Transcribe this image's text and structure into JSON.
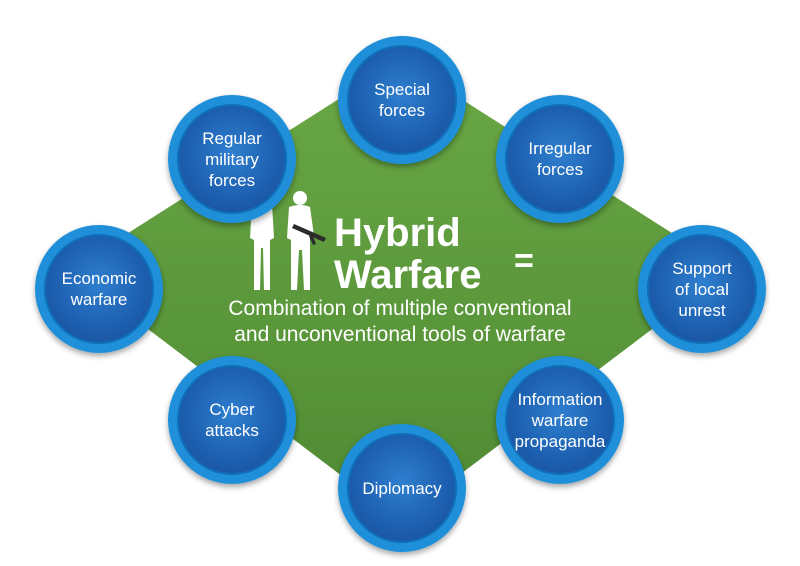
{
  "colors": {
    "background": "#ffffff",
    "diamond": "#5b9a3b",
    "circle_fill": "#1d5fb0",
    "circle_ring": "#1e8fd8",
    "text": "#ffffff"
  },
  "center": {
    "title_line1": "Hybrid",
    "title_line2": "Warfare",
    "equals": "=",
    "subtitle": "Combination of multiple conventional\nand unconventional tools of warfare",
    "icon": "soldiers-silhouette-icon"
  },
  "nodes": [
    {
      "id": "special-forces",
      "label": "Special\nforces"
    },
    {
      "id": "irregular-forces",
      "label": "Irregular\nforces"
    },
    {
      "id": "support-local-unrest",
      "label": "Support\nof local\nunrest"
    },
    {
      "id": "information-warfare",
      "label": "Information\nwarfare\npropaganda"
    },
    {
      "id": "diplomacy",
      "label": "Diplomacy"
    },
    {
      "id": "cyber-attacks",
      "label": "Cyber\nattacks"
    },
    {
      "id": "economic-warfare",
      "label": "Economic\nwarfare"
    },
    {
      "id": "regular-military-forces",
      "label": "Regular\nmilitary\nforces"
    }
  ]
}
